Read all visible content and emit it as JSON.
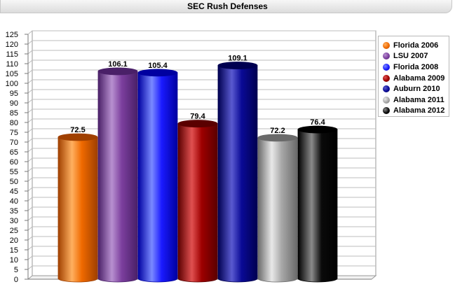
{
  "title": "SEC Rush Defenses",
  "chart_data": {
    "type": "bar",
    "title": "SEC Rush Defenses",
    "xlabel": "",
    "ylabel": "",
    "ylim": [
      0,
      125
    ],
    "yticks": [
      0,
      5,
      10,
      15,
      20,
      25,
      30,
      35,
      40,
      45,
      50,
      55,
      60,
      65,
      70,
      75,
      80,
      85,
      90,
      95,
      100,
      105,
      110,
      115,
      120,
      125
    ],
    "grid": true,
    "legend_position": "right",
    "categories": [
      "Florida 2006",
      "LSU 2007",
      "Florida 2008",
      "Alabama 2009",
      "Auburn 2010",
      "Alabama 2011",
      "Alabama 2012"
    ],
    "values": [
      72.5,
      106.1,
      105.4,
      79.4,
      109.1,
      72.2,
      76.4
    ],
    "value_labels": [
      "72.5",
      "106.1",
      "105.4",
      "79.4",
      "109.1",
      "72.2",
      "76.4"
    ],
    "colors": [
      "#f06a00",
      "#7c3f9e",
      "#1a1aff",
      "#9e0000",
      "#0a0a96",
      "#a8a8a8",
      "#0a0a0a"
    ],
    "light_colors": [
      "#ffb060",
      "#b890d0",
      "#7a8aff",
      "#e05050",
      "#5a5ad0",
      "#e8e8e8",
      "#8a8a8a"
    ],
    "dark_colors": [
      "#a04000",
      "#4a2068",
      "#0000a0",
      "#5a0000",
      "#000050",
      "#6a6a6a",
      "#000000"
    ]
  }
}
